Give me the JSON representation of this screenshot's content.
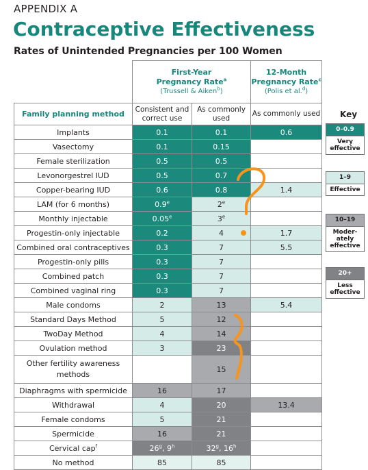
{
  "header": {
    "kicker": "APPENDIX A",
    "title": "Contraceptive Effectiveness",
    "subtitle": "Rates of Unintended Pregnancies per 100 Women"
  },
  "table": {
    "first_year": {
      "line1": "First-Year",
      "line2": "Pregnancy Rate",
      "line2_sup": "a",
      "line3": "(Trussell & Aiken",
      "line3_sup": "b",
      "line3_end": ")"
    },
    "twelve_month": {
      "line1": "12-Month",
      "line2": "Pregnancy Rate",
      "line2_sup": "c",
      "line3": "(Polis et al.",
      "line3_sup": "d",
      "line3_end": ")"
    },
    "columns": [
      "Family planning method",
      "Consistent and correct use",
      "As commonly used",
      "As commonly used"
    ],
    "rows": [
      {
        "method": "Implants",
        "cells": [
          {
            "text": "0.1",
            "color": "#1b8a7d"
          },
          {
            "text": "0.1",
            "color": "#1b8a7d"
          },
          {
            "text": "0.6",
            "color": "#1b8a7d"
          }
        ]
      },
      {
        "method": "Vasectomy",
        "cells": [
          {
            "text": "0.1",
            "color": "#1b8a7d"
          },
          {
            "text": "0.15",
            "color": "#1b8a7d"
          },
          {
            "color": "#ffffff"
          }
        ]
      },
      {
        "method": "Female sterilization",
        "cells": [
          {
            "text": "0.5",
            "color": "#1b8a7d"
          },
          {
            "text": "0.5",
            "color": "#1b8a7d"
          },
          {
            "color": "#ffffff"
          }
        ]
      },
      {
        "method": "Levonorgestrel IUD",
        "cells": [
          {
            "text": "0.5",
            "color": "#1b8a7d"
          },
          {
            "text": "0.7",
            "color": "#1b8a7d"
          },
          {
            "color": "#ffffff"
          }
        ]
      },
      {
        "method": "Copper-bearing IUD",
        "cells": [
          {
            "text": "0.6",
            "color": "#1b8a7d"
          },
          {
            "text": "0.8",
            "color": "#1b8a7d"
          },
          {
            "text": "1.4",
            "color": "#d5ebe8"
          }
        ]
      },
      {
        "method": "LAM (for 6 months)",
        "cells": [
          {
            "text": "0.9",
            "sup": "e",
            "color": "#1b8a7d"
          },
          {
            "text": "2",
            "sup": "e",
            "color": "#d5ebe8"
          },
          {
            "color": "#ffffff"
          }
        ]
      },
      {
        "method": "Monthly injectable",
        "cells": [
          {
            "text": "0.05",
            "sup": "e",
            "color": "#1b8a7d"
          },
          {
            "text": "3",
            "sup": "e",
            "color": "#d5ebe8"
          },
          {
            "color": "#ffffff"
          }
        ]
      },
      {
        "method": "Progestin-only injectable",
        "cells": [
          {
            "text": "0.2",
            "color": "#1b8a7d"
          },
          {
            "text": "4",
            "color": "#d5ebe8"
          },
          {
            "text": "1.7",
            "color": "#d5ebe8"
          }
        ]
      },
      {
        "method": "Combined oral contraceptives",
        "cells": [
          {
            "text": "0.3",
            "color": "#1b8a7d"
          },
          {
            "text": "7",
            "color": "#d5ebe8"
          },
          {
            "text": "5.5",
            "color": "#d5ebe8"
          }
        ]
      },
      {
        "method": "Progestin-only pills",
        "cells": [
          {
            "text": "0.3",
            "color": "#1b8a7d"
          },
          {
            "text": "7",
            "color": "#d5ebe8"
          },
          {
            "color": "#ffffff"
          }
        ]
      },
      {
        "method": "Combined patch",
        "cells": [
          {
            "text": "0.3",
            "color": "#1b8a7d"
          },
          {
            "text": "7",
            "color": "#d5ebe8"
          },
          {
            "color": "#ffffff"
          }
        ]
      },
      {
        "method": "Combined vaginal ring",
        "cells": [
          {
            "text": "0.3",
            "color": "#1b8a7d"
          },
          {
            "text": "7",
            "color": "#d5ebe8"
          },
          {
            "color": "#ffffff"
          }
        ]
      },
      {
        "method": "Male condoms",
        "cells": [
          {
            "text": "2",
            "color": "#d5ebe8"
          },
          {
            "text": "13",
            "color": "#a8aaad"
          },
          {
            "text": "5.4",
            "color": "#d5ebe8"
          }
        ]
      },
      {
        "method": "Standard Days Method",
        "cells": [
          {
            "text": "5",
            "color": "#d5ebe8"
          },
          {
            "text": "12",
            "color": "#a8aaad"
          },
          {
            "color": "#ffffff"
          }
        ]
      },
      {
        "method": "TwoDay Method",
        "cells": [
          {
            "text": "4",
            "color": "#d5ebe8"
          },
          {
            "text": "14",
            "color": "#a8aaad"
          },
          {
            "color": "#ffffff"
          }
        ]
      },
      {
        "method": "Ovulation method",
        "cells": [
          {
            "text": "3",
            "color": "#d5ebe8"
          },
          {
            "text": "23",
            "color": "#808285"
          },
          {
            "color": "#ffffff"
          }
        ]
      },
      {
        "method": "Other fertility awareness methods",
        "cells": [
          {
            "color": "#ffffff"
          },
          {
            "text": "15",
            "color": "#a8aaad"
          },
          {
            "color": "#ffffff"
          }
        ]
      },
      {
        "method": "Diaphragms with spermicide",
        "cells": [
          {
            "text": "16",
            "color": "#a8aaad"
          },
          {
            "text": "17",
            "color": "#a8aaad"
          },
          {
            "color": "#ffffff"
          }
        ]
      },
      {
        "method": "Withdrawal",
        "cells": [
          {
            "text": "4",
            "color": "#d5ebe8"
          },
          {
            "text": "20",
            "color": "#808285"
          },
          {
            "text": "13.4",
            "color": "#a8aaad"
          }
        ]
      },
      {
        "method": "Female condoms",
        "cells": [
          {
            "text": "5",
            "color": "#d5ebe8"
          },
          {
            "text": "21",
            "color": "#808285"
          },
          {
            "color": "#ffffff"
          }
        ]
      },
      {
        "method": "Spermicide",
        "cells": [
          {
            "text": "16",
            "color": "#a8aaad"
          },
          {
            "text": "21",
            "color": "#808285"
          },
          {
            "color": "#ffffff"
          }
        ]
      },
      {
        "method": "Cervical cap",
        "method_sup": "f",
        "cells": [
          {
            "parts": [
              {
                "text": "26",
                "sup": "g"
              },
              {
                "text": ", 9",
                "sup": "h"
              }
            ],
            "color": "#808285"
          },
          {
            "parts": [
              {
                "text": "32",
                "sup": "g"
              },
              {
                "text": ", 16",
                "sup": "h"
              }
            ],
            "color": "#808285"
          },
          {
            "color": "#ffffff"
          }
        ]
      },
      {
        "method": "No method",
        "cells": [
          {
            "text": "85",
            "color": "#e3f1ef"
          },
          {
            "text": "85",
            "color": "#e3f1ef"
          },
          {
            "color": "#ffffff"
          }
        ]
      }
    ]
  },
  "key": {
    "title": "Key",
    "items": [
      {
        "range": "0–0.9",
        "label_lines": [
          "Very",
          "effective"
        ],
        "color": "#1b8a7d"
      },
      {
        "range": "1–9",
        "label_lines": [
          "Effective"
        ],
        "color": "#d5ebe8"
      },
      {
        "range": "10–19",
        "label_lines": [
          "Moder-",
          "ately",
          "effective"
        ],
        "color": "#a8aaad"
      },
      {
        "range": "20+",
        "label_lines": [
          "Less",
          "effective"
        ],
        "color": "#808285"
      }
    ]
  }
}
